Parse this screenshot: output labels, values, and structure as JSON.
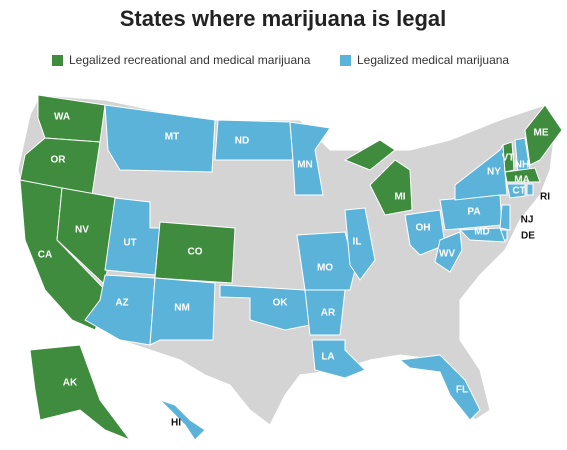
{
  "title": "States where marijuana is legal",
  "legend": [
    {
      "label": "Legalized recreational and medical marijuana",
      "color": "#3f8c3f"
    },
    {
      "label": "Legalized medical marijuana",
      "color": "#5bb3d9"
    }
  ],
  "states": [
    {
      "label": "WA",
      "category": 0
    },
    {
      "label": "OR",
      "category": 0
    },
    {
      "label": "CA",
      "category": 0
    },
    {
      "label": "NV",
      "category": 0
    },
    {
      "label": "MT",
      "category": 1
    },
    {
      "label": "ND",
      "category": 1
    },
    {
      "label": "MN",
      "category": 1
    },
    {
      "label": "UT",
      "category": 1
    },
    {
      "label": "CO",
      "category": 0
    },
    {
      "label": "AZ",
      "category": 1
    },
    {
      "label": "NM",
      "category": 1
    },
    {
      "label": "OK",
      "category": 1
    },
    {
      "label": "AR",
      "category": 1
    },
    {
      "label": "LA",
      "category": 1
    },
    {
      "label": "MO",
      "category": 1
    },
    {
      "label": "IL",
      "category": 1
    },
    {
      "label": "MI",
      "category": 0
    },
    {
      "label": "OH",
      "category": 1
    },
    {
      "label": "WV",
      "category": 1
    },
    {
      "label": "PA",
      "category": 1
    },
    {
      "label": "NY",
      "category": 1
    },
    {
      "label": "VT",
      "category": 0
    },
    {
      "label": "NH",
      "category": 1
    },
    {
      "label": "ME",
      "category": 0
    },
    {
      "label": "MA",
      "category": 0
    },
    {
      "label": "CT",
      "category": 1
    },
    {
      "label": "RI",
      "category": 1
    },
    {
      "label": "NJ",
      "category": 1
    },
    {
      "label": "DE",
      "category": 1
    },
    {
      "label": "MD",
      "category": 1
    },
    {
      "label": "FL",
      "category": 1
    },
    {
      "label": "AK",
      "category": 0
    },
    {
      "label": "HI",
      "category": 1
    }
  ]
}
